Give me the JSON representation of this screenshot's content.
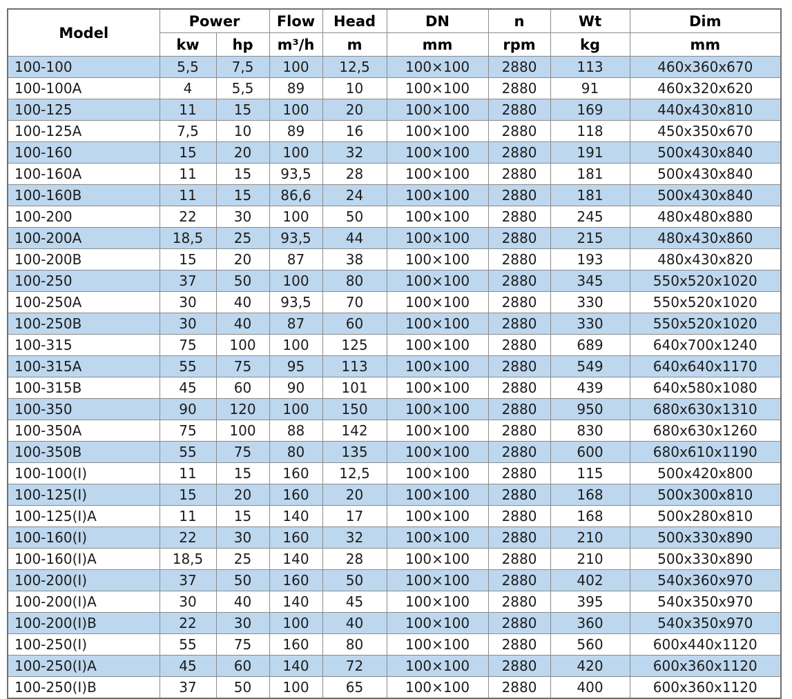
{
  "colors": {
    "row_stripe": "#BDD7EE",
    "grid_line": "#8a8a8a",
    "outer_border": "#6f6f6f",
    "header_text": "#000000",
    "body_text": "#1c1c1c",
    "background": "#ffffff"
  },
  "table": {
    "header": {
      "model": "Model",
      "power": "Power",
      "flow": "Flow",
      "head": "Head",
      "dn": "DN",
      "n": "n",
      "wt": "Wt",
      "dim": "Dim",
      "unit_kw": "kw",
      "unit_hp": "hp",
      "unit_flow": "m³/h",
      "unit_head": "m",
      "unit_dn": "mm",
      "unit_n": "rpm",
      "unit_wt": "kg",
      "unit_dim": "mm"
    },
    "column_keys": [
      "model",
      "power-kw",
      "power-hp",
      "flow",
      "head",
      "dn",
      "n",
      "wt",
      "dim"
    ],
    "rows": [
      [
        "100-100",
        "5,5",
        "7,5",
        "100",
        "12,5",
        "100×100",
        "2880",
        "113",
        "460x360x670"
      ],
      [
        "100-100A",
        "4",
        "5,5",
        "89",
        "10",
        "100×100",
        "2880",
        "91",
        "460x320x620"
      ],
      [
        "100-125",
        "11",
        "15",
        "100",
        "20",
        "100×100",
        "2880",
        "169",
        "440x430x810"
      ],
      [
        "100-125A",
        "7,5",
        "10",
        "89",
        "16",
        "100×100",
        "2880",
        "118",
        "450x350x670"
      ],
      [
        "100-160",
        "15",
        "20",
        "100",
        "32",
        "100×100",
        "2880",
        "191",
        "500x430x840"
      ],
      [
        "100-160A",
        "11",
        "15",
        "93,5",
        "28",
        "100×100",
        "2880",
        "181",
        "500x430x840"
      ],
      [
        "100-160B",
        "11",
        "15",
        "86,6",
        "24",
        "100×100",
        "2880",
        "181",
        "500x430x840"
      ],
      [
        "100-200",
        "22",
        "30",
        "100",
        "50",
        "100×100",
        "2880",
        "245",
        "480x480x880"
      ],
      [
        "100-200A",
        "18,5",
        "25",
        "93,5",
        "44",
        "100×100",
        "2880",
        "215",
        "480x430x860"
      ],
      [
        "100-200B",
        "15",
        "20",
        "87",
        "38",
        "100×100",
        "2880",
        "193",
        "480x430x820"
      ],
      [
        "100-250",
        "37",
        "50",
        "100",
        "80",
        "100×100",
        "2880",
        "345",
        "550x520x1020"
      ],
      [
        "100-250A",
        "30",
        "40",
        "93,5",
        "70",
        "100×100",
        "2880",
        "330",
        "550x520x1020"
      ],
      [
        "100-250B",
        "30",
        "40",
        "87",
        "60",
        "100×100",
        "2880",
        "330",
        "550x520x1020"
      ],
      [
        "100-315",
        "75",
        "100",
        "100",
        "125",
        "100×100",
        "2880",
        "689",
        "640x700x1240"
      ],
      [
        "100-315A",
        "55",
        "75",
        "95",
        "113",
        "100×100",
        "2880",
        "549",
        "640x640x1170"
      ],
      [
        "100-315B",
        "45",
        "60",
        "90",
        "101",
        "100×100",
        "2880",
        "439",
        "640x580x1080"
      ],
      [
        "100-350",
        "90",
        "120",
        "100",
        "150",
        "100×100",
        "2880",
        "950",
        "680x630x1310"
      ],
      [
        "100-350A",
        "75",
        "100",
        "88",
        "142",
        "100×100",
        "2880",
        "830",
        "680x630x1260"
      ],
      [
        "100-350B",
        "55",
        "75",
        "80",
        "135",
        "100×100",
        "2880",
        "600",
        "680x610x1190"
      ],
      [
        "100-100(I)",
        "11",
        "15",
        "160",
        "12,5",
        "100×100",
        "2880",
        "115",
        "500x420x800"
      ],
      [
        "100-125(I)",
        "15",
        "20",
        "160",
        "20",
        "100×100",
        "2880",
        "168",
        "500x300x810"
      ],
      [
        "100-125(I)A",
        "11",
        "15",
        "140",
        "17",
        "100×100",
        "2880",
        "168",
        "500x280x810"
      ],
      [
        "100-160(I)",
        "22",
        "30",
        "160",
        "32",
        "100×100",
        "2880",
        "210",
        "500x330x890"
      ],
      [
        "100-160(I)A",
        "18,5",
        "25",
        "140",
        "28",
        "100×100",
        "2880",
        "210",
        "500x330x890"
      ],
      [
        "100-200(I)",
        "37",
        "50",
        "160",
        "50",
        "100×100",
        "2880",
        "402",
        "540x360x970"
      ],
      [
        "100-200(I)A",
        "30",
        "40",
        "140",
        "45",
        "100×100",
        "2880",
        "395",
        "540x350x970"
      ],
      [
        "100-200(I)B",
        "22",
        "30",
        "100",
        "40",
        "100×100",
        "2880",
        "360",
        "540x350x970"
      ],
      [
        "100-250(I)",
        "55",
        "75",
        "160",
        "80",
        "100×100",
        "2880",
        "560",
        "600x440x1120"
      ],
      [
        "100-250(I)A",
        "45",
        "60",
        "140",
        "72",
        "100×100",
        "2880",
        "420",
        "600x360x1120"
      ],
      [
        "100-250(I)B",
        "37",
        "50",
        "100",
        "65",
        "100×100",
        "2880",
        "400",
        "600x360x1120"
      ]
    ]
  }
}
